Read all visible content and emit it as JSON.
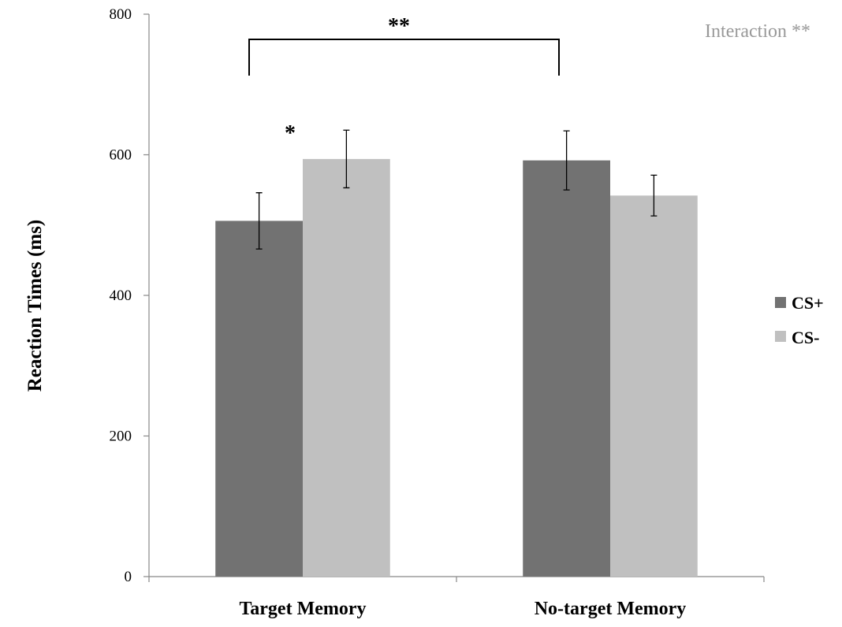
{
  "chart_data": {
    "type": "bar",
    "title": "",
    "xlabel": "",
    "ylabel": "Reaction Times (ms)",
    "ylim": [
      0,
      800
    ],
    "yticks": [
      0,
      200,
      400,
      600,
      800
    ],
    "categories": [
      "Target Memory",
      "No-target Memory"
    ],
    "series": [
      {
        "name": "CS+",
        "color": "#727272",
        "values": [
          506,
          592
        ],
        "errors": [
          40,
          42
        ]
      },
      {
        "name": "CS-",
        "color": "#c0c0c0",
        "values": [
          594,
          542
        ],
        "errors": [
          41,
          29
        ]
      }
    ],
    "grid": false,
    "legend": {
      "position": "right",
      "entries": [
        "CS+",
        "CS-"
      ]
    },
    "annotations": {
      "interaction": "Interaction **",
      "bracket_significance": "**",
      "target_memory_significance": "*"
    }
  }
}
